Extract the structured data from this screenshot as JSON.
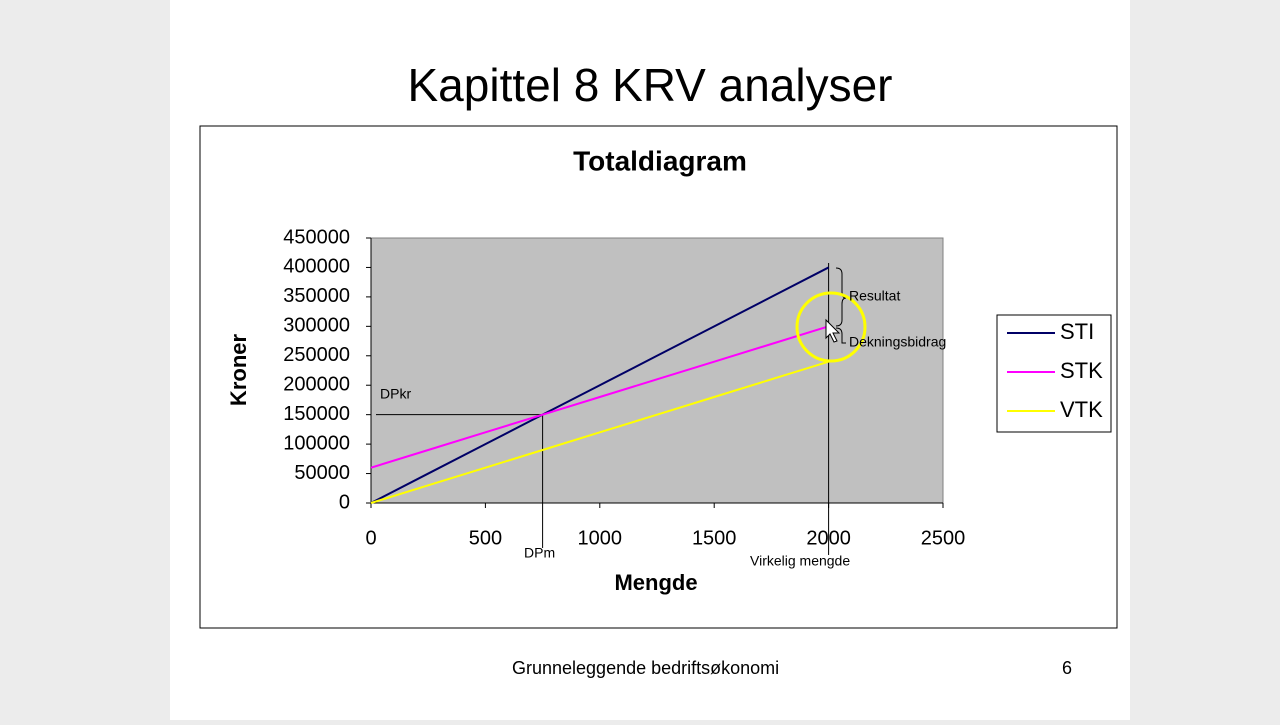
{
  "slide": {
    "title": "Kapittel 8 KRV analyser",
    "footer": "Grunneleggende bedriftsøkonomi",
    "page": "6"
  },
  "chart_data": {
    "type": "line",
    "title": "Totaldiagram",
    "x_label": "Mengde",
    "y_label": "Kroner",
    "x": [
      0,
      250,
      500,
      750,
      1000,
      1250,
      1500,
      1750,
      2000
    ],
    "series": [
      {
        "name": "STI",
        "color": "#000066",
        "values": [
          0,
          50000,
          100000,
          150000,
          200000,
          250000,
          300000,
          350000,
          400000
        ]
      },
      {
        "name": "STK",
        "color": "#ff00ff",
        "values": [
          60000,
          90000,
          120000,
          150000,
          180000,
          210000,
          240000,
          270000,
          300000
        ]
      },
      {
        "name": "VTK",
        "color": "#ffff00",
        "values": [
          0,
          30000,
          60000,
          90000,
          120000,
          150000,
          180000,
          210000,
          240000
        ]
      }
    ],
    "xlim": [
      0,
      2500
    ],
    "xticks": [
      0,
      500,
      1000,
      1500,
      2000,
      2500
    ],
    "ylim": [
      0,
      450000
    ],
    "yticks": [
      0,
      50000,
      100000,
      150000,
      200000,
      250000,
      300000,
      350000,
      400000,
      450000
    ],
    "plot_background": "#c0c0c0",
    "legend": "right",
    "annotations": [
      "Resultat",
      "Dekningsbidrag",
      "DPkr",
      "DPm",
      "Virkelig mengde"
    ]
  }
}
